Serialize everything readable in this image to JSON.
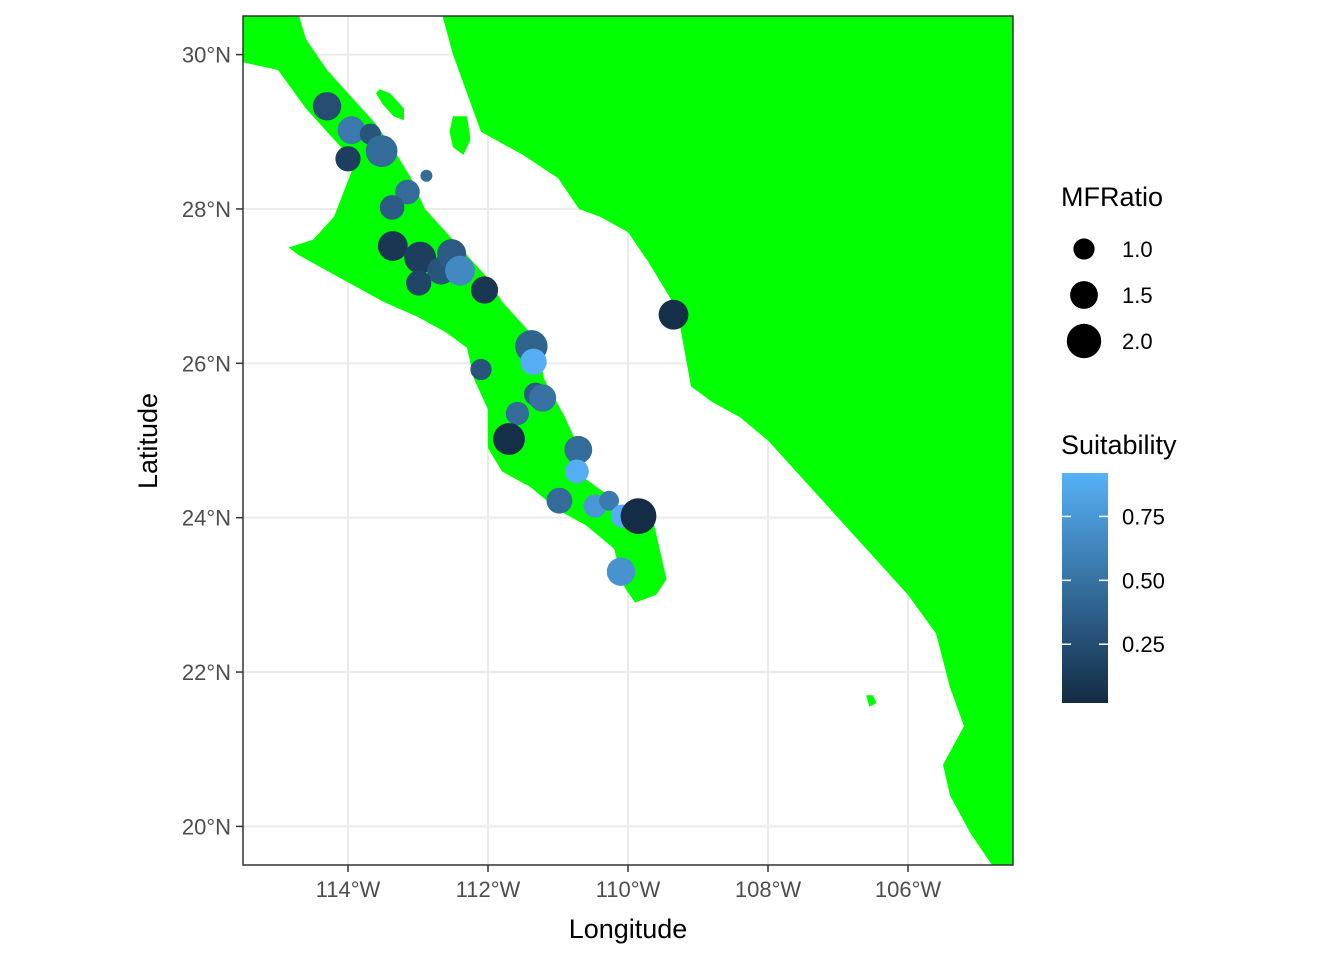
{
  "chart_data": {
    "type": "scatter",
    "title": "",
    "xlabel": "Longitude",
    "ylabel": "Latitude",
    "xlim": [
      -115.5,
      -104.5
    ],
    "ylim": [
      19.5,
      30.5
    ],
    "x_ticks": [
      -114,
      -112,
      -110,
      -108,
      -106
    ],
    "x_tick_labels": [
      "114°W",
      "112°W",
      "110°W",
      "108°W",
      "106°W"
    ],
    "y_ticks": [
      20,
      22,
      24,
      26,
      28,
      30
    ],
    "y_tick_labels": [
      "20°N",
      "22°N",
      "24°N",
      "26°N",
      "28°N",
      "30°N"
    ],
    "grid": true,
    "land_color": "#00ff00",
    "land_polygons": [
      {
        "name": "baja-peninsula",
        "coords": [
          [
            -115.5,
            29.9
          ],
          [
            -115.0,
            29.8
          ],
          [
            -114.6,
            29.3
          ],
          [
            -114.2,
            28.9
          ],
          [
            -113.9,
            28.6
          ],
          [
            -114.2,
            27.9
          ],
          [
            -114.5,
            27.6
          ],
          [
            -114.85,
            27.5
          ],
          [
            -114.7,
            27.4
          ],
          [
            -114.3,
            27.2
          ],
          [
            -113.9,
            27.0
          ],
          [
            -113.5,
            26.8
          ],
          [
            -113.0,
            26.6
          ],
          [
            -112.6,
            26.4
          ],
          [
            -112.3,
            26.2
          ],
          [
            -112.2,
            25.8
          ],
          [
            -112.0,
            25.4
          ],
          [
            -112.0,
            24.9
          ],
          [
            -111.8,
            24.6
          ],
          [
            -111.4,
            24.4
          ],
          [
            -111.0,
            24.1
          ],
          [
            -110.6,
            23.9
          ],
          [
            -110.2,
            23.6
          ],
          [
            -110.05,
            23.1
          ],
          [
            -109.9,
            22.9
          ],
          [
            -109.6,
            23.0
          ],
          [
            -109.45,
            23.2
          ],
          [
            -109.6,
            23.8
          ],
          [
            -109.7,
            24.2
          ],
          [
            -110.1,
            24.1
          ],
          [
            -110.3,
            24.3
          ],
          [
            -110.6,
            24.5
          ],
          [
            -110.7,
            24.9
          ],
          [
            -110.9,
            25.3
          ],
          [
            -111.2,
            25.8
          ],
          [
            -111.3,
            26.3
          ],
          [
            -111.5,
            26.5
          ],
          [
            -111.8,
            26.8
          ],
          [
            -112.0,
            27.1
          ],
          [
            -112.3,
            27.4
          ],
          [
            -112.6,
            27.7
          ],
          [
            -112.9,
            28.0
          ],
          [
            -113.1,
            28.4
          ],
          [
            -113.3,
            28.7
          ],
          [
            -113.6,
            29.1
          ],
          [
            -114.0,
            29.5
          ],
          [
            -114.3,
            29.8
          ],
          [
            -114.6,
            30.2
          ],
          [
            -114.7,
            30.5
          ],
          [
            -115.5,
            30.5
          ]
        ]
      },
      {
        "name": "mainland-mexico",
        "coords": [
          [
            -112.65,
            30.5
          ],
          [
            -112.5,
            30.0
          ],
          [
            -112.3,
            29.5
          ],
          [
            -112.1,
            29.0
          ],
          [
            -111.5,
            28.7
          ],
          [
            -111.0,
            28.4
          ],
          [
            -110.7,
            28.0
          ],
          [
            -110.4,
            27.9
          ],
          [
            -110.0,
            27.7
          ],
          [
            -109.7,
            27.3
          ],
          [
            -109.5,
            27.0
          ],
          [
            -109.3,
            26.7
          ],
          [
            -109.2,
            26.2
          ],
          [
            -109.1,
            25.7
          ],
          [
            -108.8,
            25.5
          ],
          [
            -108.4,
            25.3
          ],
          [
            -108.0,
            25.0
          ],
          [
            -107.5,
            24.5
          ],
          [
            -107.0,
            24.0
          ],
          [
            -106.5,
            23.5
          ],
          [
            -106.0,
            23.0
          ],
          [
            -105.6,
            22.5
          ],
          [
            -105.4,
            21.8
          ],
          [
            -105.2,
            21.3
          ],
          [
            -105.5,
            20.8
          ],
          [
            -105.4,
            20.4
          ],
          [
            -105.1,
            19.9
          ],
          [
            -104.8,
            19.5
          ],
          [
            -104.5,
            19.5
          ],
          [
            -104.5,
            30.5
          ]
        ]
      },
      {
        "name": "isla-angel-de-la-guarda",
        "coords": [
          [
            -113.55,
            29.55
          ],
          [
            -113.4,
            29.5
          ],
          [
            -113.2,
            29.3
          ],
          [
            -113.2,
            29.15
          ],
          [
            -113.35,
            29.2
          ],
          [
            -113.5,
            29.35
          ],
          [
            -113.6,
            29.5
          ]
        ]
      },
      {
        "name": "isla-tiburon",
        "coords": [
          [
            -112.5,
            29.2
          ],
          [
            -112.3,
            29.2
          ],
          [
            -112.25,
            28.9
          ],
          [
            -112.35,
            28.7
          ],
          [
            -112.5,
            28.8
          ],
          [
            -112.55,
            29.0
          ]
        ]
      },
      {
        "name": "isla-tres-marias",
        "coords": [
          [
            -106.6,
            21.7
          ],
          [
            -106.5,
            21.7
          ],
          [
            -106.45,
            21.6
          ],
          [
            -106.55,
            21.55
          ]
        ]
      }
    ],
    "size_legend": {
      "title": "MFRatio",
      "values": [
        1.0,
        1.5,
        2.0
      ],
      "labels": [
        "1.0",
        "1.5",
        "2.0"
      ]
    },
    "color_legend": {
      "title": "Suitability",
      "min": 0.02,
      "max": 0.92,
      "ticks": [
        0.25,
        0.5,
        0.75
      ],
      "tick_labels": [
        "0.25",
        "0.50",
        "0.75"
      ],
      "low_color": "#132b43",
      "high_color": "#56b1f7"
    },
    "points": [
      {
        "lon": -114.3,
        "lat": 29.33,
        "mfratio": 1.55,
        "suitability": 0.25
      },
      {
        "lon": -113.95,
        "lat": 29.02,
        "mfratio": 1.5,
        "suitability": 0.55
      },
      {
        "lon": -113.68,
        "lat": 28.97,
        "mfratio": 1.0,
        "suitability": 0.3
      },
      {
        "lon": -114.0,
        "lat": 28.65,
        "mfratio": 1.3,
        "suitability": 0.15
      },
      {
        "lon": -113.52,
        "lat": 28.75,
        "mfratio": 1.8,
        "suitability": 0.45
      },
      {
        "lon": -112.88,
        "lat": 28.43,
        "mfratio": 0.3,
        "suitability": 0.45
      },
      {
        "lon": -113.15,
        "lat": 28.22,
        "mfratio": 1.25,
        "suitability": 0.45
      },
      {
        "lon": -113.37,
        "lat": 28.02,
        "mfratio": 1.25,
        "suitability": 0.35
      },
      {
        "lon": -113.36,
        "lat": 27.52,
        "mfratio": 1.65,
        "suitability": 0.1
      },
      {
        "lon": -112.97,
        "lat": 27.37,
        "mfratio": 1.8,
        "suitability": 0.15
      },
      {
        "lon": -112.67,
        "lat": 27.2,
        "mfratio": 1.5,
        "suitability": 0.3
      },
      {
        "lon": -112.52,
        "lat": 27.42,
        "mfratio": 1.6,
        "suitability": 0.35
      },
      {
        "lon": -112.4,
        "lat": 27.2,
        "mfratio": 1.65,
        "suitability": 0.65
      },
      {
        "lon": -112.99,
        "lat": 27.04,
        "mfratio": 1.3,
        "suitability": 0.2
      },
      {
        "lon": -112.05,
        "lat": 26.95,
        "mfratio": 1.45,
        "suitability": 0.1
      },
      {
        "lon": -112.1,
        "lat": 25.92,
        "mfratio": 1.0,
        "suitability": 0.3
      },
      {
        "lon": -111.38,
        "lat": 26.22,
        "mfratio": 1.85,
        "suitability": 0.4
      },
      {
        "lon": -111.35,
        "lat": 26.02,
        "mfratio": 1.4,
        "suitability": 0.9
      },
      {
        "lon": -111.32,
        "lat": 25.6,
        "mfratio": 1.15,
        "suitability": 0.35
      },
      {
        "lon": -111.22,
        "lat": 25.55,
        "mfratio": 1.45,
        "suitability": 0.5
      },
      {
        "lon": -111.58,
        "lat": 25.35,
        "mfratio": 1.15,
        "suitability": 0.45
      },
      {
        "lon": -111.7,
        "lat": 25.02,
        "mfratio": 1.8,
        "suitability": 0.05
      },
      {
        "lon": -110.71,
        "lat": 24.88,
        "mfratio": 1.5,
        "suitability": 0.45
      },
      {
        "lon": -110.73,
        "lat": 24.6,
        "mfratio": 1.2,
        "suitability": 0.9
      },
      {
        "lon": -110.98,
        "lat": 24.22,
        "mfratio": 1.35,
        "suitability": 0.45
      },
      {
        "lon": -110.47,
        "lat": 24.15,
        "mfratio": 1.15,
        "suitability": 0.75
      },
      {
        "lon": -110.27,
        "lat": 24.22,
        "mfratio": 0.9,
        "suitability": 0.55
      },
      {
        "lon": -110.08,
        "lat": 24.02,
        "mfratio": 1.15,
        "suitability": 0.9
      },
      {
        "lon": -109.85,
        "lat": 24.02,
        "mfratio": 2.1,
        "suitability": 0.03
      },
      {
        "lon": -110.1,
        "lat": 23.3,
        "mfratio": 1.55,
        "suitability": 0.72
      },
      {
        "lon": -109.35,
        "lat": 26.63,
        "mfratio": 1.65,
        "suitability": 0.05
      }
    ]
  }
}
